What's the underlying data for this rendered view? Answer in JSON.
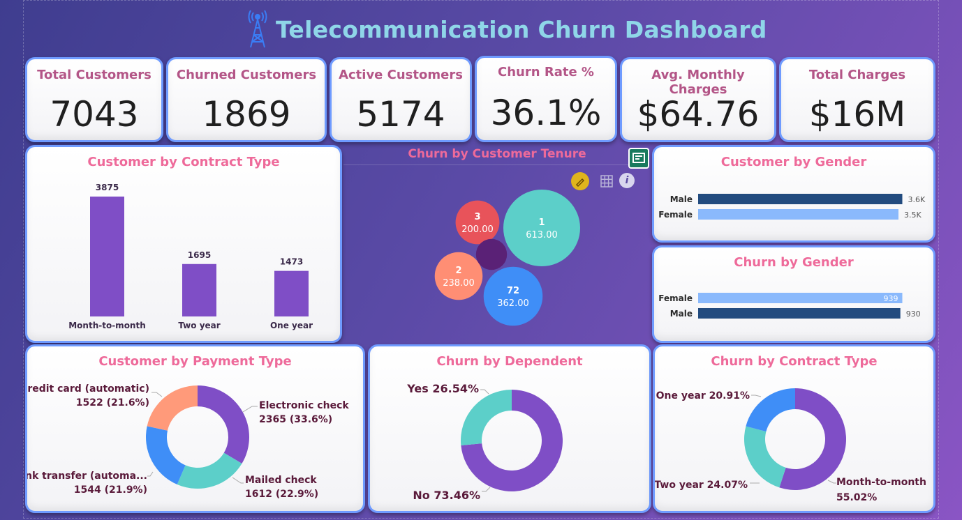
{
  "header": {
    "title": "Telecommunication Churn Dashboard",
    "icon": "antenna-tower-icon"
  },
  "kpis": {
    "total_customers": {
      "label": "Total Customers",
      "value": "7043"
    },
    "churned_customers": {
      "label": "Churned Customers",
      "value": "1869"
    },
    "active_customers": {
      "label": "Active Customers",
      "value": "5174"
    },
    "churn_rate": {
      "label": "Churn Rate %",
      "value": "36.1%"
    },
    "avg_monthly_charges": {
      "label": "Avg. Monthly Charges",
      "value": "$64.76"
    },
    "total_charges": {
      "label": "Total Charges",
      "value": "$16M"
    }
  },
  "contract_type": {
    "title": "Customer by Contract Type"
  },
  "tenure": {
    "title": "Churn by Customer Tenure"
  },
  "gender": {
    "title": "Customer by Gender"
  },
  "churn_gender": {
    "title": "Churn by Gender"
  },
  "payment": {
    "title": "Customer by Payment Type"
  },
  "dependent": {
    "title": "Churn by Dependent"
  },
  "churn_contract": {
    "title": "Churn by Contract Type"
  },
  "colors": {
    "accent": "#7f4ec6",
    "title_pink": "#ee6a9a",
    "card_border": "#6f9bff",
    "navy": "#224b7f",
    "light_blue": "#8ab9fc"
  },
  "chart_data": [
    {
      "id": "contract",
      "type": "bar",
      "title": "Customer by Contract Type",
      "categories": [
        "Month-to-month",
        "Two year",
        "One year"
      ],
      "values": [
        3875,
        1695,
        1473
      ],
      "data_labels": [
        "3875",
        "1695",
        "1473"
      ],
      "ylim": [
        0,
        3875
      ],
      "colors": [
        "#7f4ec6"
      ]
    },
    {
      "id": "tenure",
      "type": "scatter",
      "title": "Churn by Customer Tenure",
      "points": [
        {
          "label": "1",
          "value": 613,
          "value_label": "613.00",
          "color": "#5ccfc9"
        },
        {
          "label": "72",
          "value": 362,
          "value_label": "362.00",
          "color": "#3f8ef7"
        },
        {
          "label": "2",
          "value": 238,
          "value_label": "238.00",
          "color": "#ff8e74"
        },
        {
          "label": "3",
          "value": 200,
          "value_label": "200.00",
          "color": "#e8535a"
        },
        {
          "label": "",
          "value": 100,
          "value_label": "",
          "color": "#5a2176"
        }
      ]
    },
    {
      "id": "gender",
      "type": "bar",
      "orientation": "horizontal",
      "title": "Customer by Gender",
      "categories": [
        "Male",
        "Female"
      ],
      "values": [
        3555,
        3488
      ],
      "data_labels": [
        "3.6K",
        "3.5K"
      ],
      "colors": [
        "#224b7f",
        "#8ab9fc"
      ]
    },
    {
      "id": "churn_gender",
      "type": "bar",
      "orientation": "horizontal",
      "title": "Churn by Gender",
      "categories": [
        "Female",
        "Male"
      ],
      "values": [
        939,
        930
      ],
      "data_labels": [
        "939",
        "930"
      ],
      "colors": [
        "#8ab9fc",
        "#224b7f"
      ]
    },
    {
      "id": "payment",
      "type": "pie",
      "donut": true,
      "title": "Customer by Payment Type",
      "slices": [
        {
          "name": "Electronic check",
          "value": 2365,
          "label": "2365 (33.6%)",
          "color": "#7f4ec6"
        },
        {
          "name": "Mailed check",
          "value": 1612,
          "label": "1612 (22.9%)",
          "color": "#5ccfc9"
        },
        {
          "name": "Bank transfer (automa...",
          "value": 1544,
          "label": "1544 (21.9%)",
          "color": "#3f8ef7"
        },
        {
          "name": "Credit card (automatic)",
          "value": 1522,
          "label": "1522 (21.6%)",
          "color": "#ff9a7a"
        }
      ]
    },
    {
      "id": "dependent",
      "type": "pie",
      "donut": true,
      "title": "Churn by Dependent",
      "slices": [
        {
          "name": "No",
          "value": 73.46,
          "label": "No 73.46%",
          "color": "#7f4ec6"
        },
        {
          "name": "Yes",
          "value": 26.54,
          "label": "Yes 26.54%",
          "color": "#5ccfc9"
        }
      ]
    },
    {
      "id": "churn_contract",
      "type": "pie",
      "donut": true,
      "title": "Churn by Contract Type",
      "slices": [
        {
          "name": "Month-to-month",
          "value": 55.02,
          "label": "Month-to-month 55.02%",
          "color": "#7f4ec6"
        },
        {
          "name": "Two year",
          "value": 24.07,
          "label": "Two year 24.07%",
          "color": "#5ccfc9"
        },
        {
          "name": "One year",
          "value": 20.91,
          "label": "One year 20.91%",
          "color": "#3f8ef7"
        }
      ]
    }
  ]
}
